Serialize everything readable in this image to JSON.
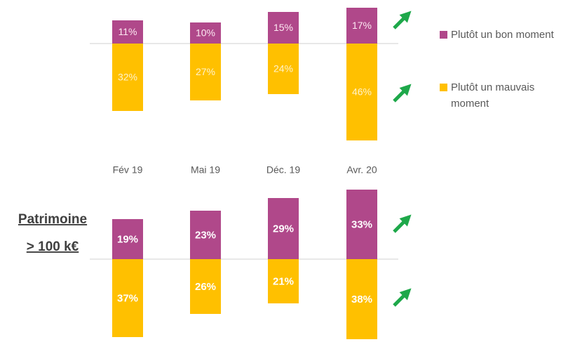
{
  "chart_data": [
    {
      "type": "diverging-bar",
      "categories": [
        "Fév 19",
        "Mai 19",
        "Déc. 19",
        "Avr. 20"
      ],
      "series": [
        {
          "name": "Plutôt un bon moment",
          "color": "#b0488a",
          "values": [
            11,
            10,
            15,
            17
          ],
          "value_labels": [
            "11%",
            "10%",
            "15%",
            "17%"
          ]
        },
        {
          "name": "Plutôt un mauvais moment",
          "color": "#ffc000",
          "values": [
            32,
            27,
            24,
            46
          ],
          "value_labels": [
            "32%",
            "27%",
            "24%",
            "46%"
          ]
        }
      ]
    },
    {
      "type": "diverging-bar",
      "title": [
        "Patrimoine",
        "> 100 k€"
      ],
      "series": [
        {
          "color": "#b0488a",
          "values": [
            19,
            23,
            29,
            33
          ],
          "value_labels": [
            "19%",
            "23%",
            "29%",
            "33%"
          ]
        },
        {
          "color": "#ffc000",
          "values": [
            37,
            26,
            21,
            38
          ],
          "value_labels": [
            "37%",
            "26%",
            "21%",
            "38%"
          ]
        }
      ]
    }
  ]
}
